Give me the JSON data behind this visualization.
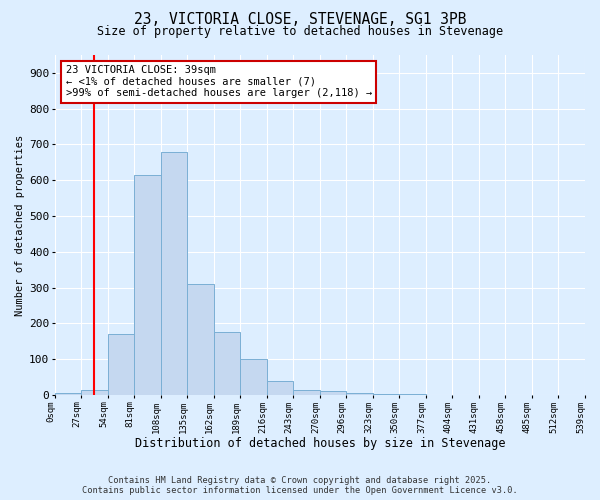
{
  "title_line1": "23, VICTORIA CLOSE, STEVENAGE, SG1 3PB",
  "title_line2": "Size of property relative to detached houses in Stevenage",
  "xlabel": "Distribution of detached houses by size in Stevenage",
  "ylabel": "Number of detached properties",
  "bar_values": [
    5,
    15,
    170,
    615,
    680,
    310,
    175,
    100,
    40,
    15,
    10,
    5,
    2,
    2,
    1,
    1,
    1,
    0,
    0,
    0
  ],
  "x_labels": [
    "0sqm",
    "27sqm",
    "54sqm",
    "81sqm",
    "108sqm",
    "135sqm",
    "162sqm",
    "189sqm",
    "216sqm",
    "243sqm",
    "270sqm",
    "296sqm",
    "323sqm",
    "350sqm",
    "377sqm",
    "404sqm",
    "431sqm",
    "458sqm",
    "485sqm",
    "512sqm",
    "539sqm"
  ],
  "bar_color": "#c5d8f0",
  "bar_edge_color": "#7aafd4",
  "red_line_x": 1.48,
  "annotation_text": "23 VICTORIA CLOSE: 39sqm\n← <1% of detached houses are smaller (7)\n>99% of semi-detached houses are larger (2,118) →",
  "annotation_box_color": "#ffffff",
  "annotation_box_edge": "#cc0000",
  "footer_line1": "Contains HM Land Registry data © Crown copyright and database right 2025.",
  "footer_line2": "Contains public sector information licensed under the Open Government Licence v3.0.",
  "ylim": [
    0,
    950
  ],
  "yticks": [
    0,
    100,
    200,
    300,
    400,
    500,
    600,
    700,
    800,
    900
  ],
  "background_color": "#ddeeff",
  "figsize": [
    6.0,
    5.0
  ],
  "dpi": 100
}
